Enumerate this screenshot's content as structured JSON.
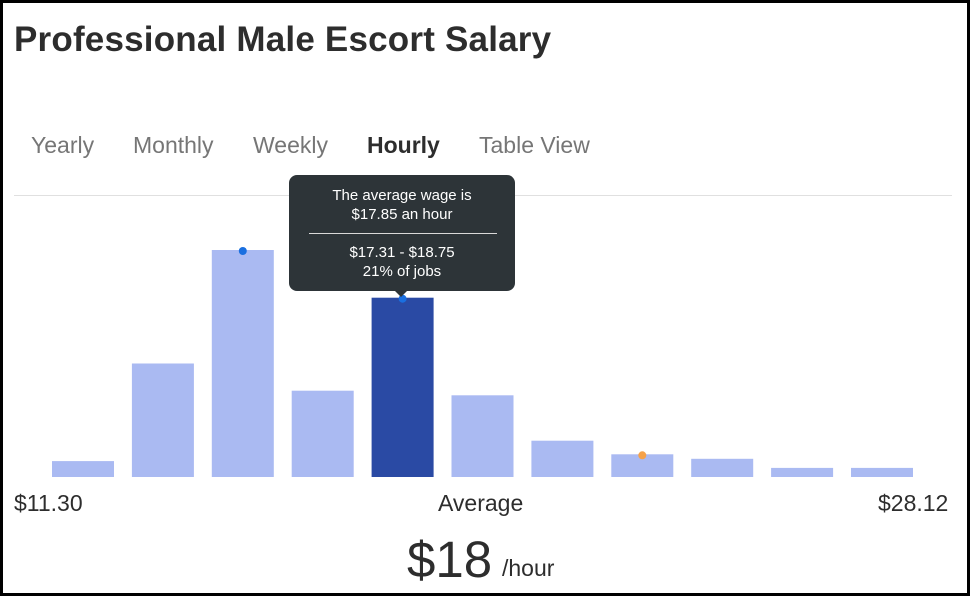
{
  "page": {
    "title": "Professional Male Escort Salary"
  },
  "tabs": [
    {
      "label": "Yearly",
      "active": false
    },
    {
      "label": "Monthly",
      "active": false
    },
    {
      "label": "Weekly",
      "active": false
    },
    {
      "label": "Hourly",
      "active": true
    },
    {
      "label": "Table View",
      "active": false
    }
  ],
  "tooltip": {
    "line1": "The average wage is",
    "line2": "$17.85 an hour",
    "line3": "$17.31 - $18.75",
    "line4": "21% of jobs"
  },
  "axis": {
    "min_label": "$11.30",
    "center_label": "Average",
    "max_label": "$28.12"
  },
  "summary": {
    "value": "$18",
    "unit": "/hour"
  },
  "chart_data": {
    "type": "bar",
    "title": "",
    "xlabel": "",
    "ylabel": "",
    "x_range": [
      11.3,
      28.12
    ],
    "categories": [
      "1",
      "2",
      "3",
      "4",
      "5",
      "6",
      "7",
      "8",
      "9",
      "10",
      "11"
    ],
    "values": [
      7,
      50,
      100,
      38,
      79,
      36,
      16,
      10,
      8,
      4,
      4
    ],
    "highlight_index": 4,
    "marker_blue_bins": [
      2,
      4
    ],
    "marker_orange_bins": [
      7
    ],
    "colors": {
      "bar": "#aabaf2",
      "bar_highlight": "#2a4aa4",
      "marker_blue": "#1a6fe0",
      "marker_orange": "#f5a24a"
    },
    "grid": false,
    "legend": "none"
  }
}
